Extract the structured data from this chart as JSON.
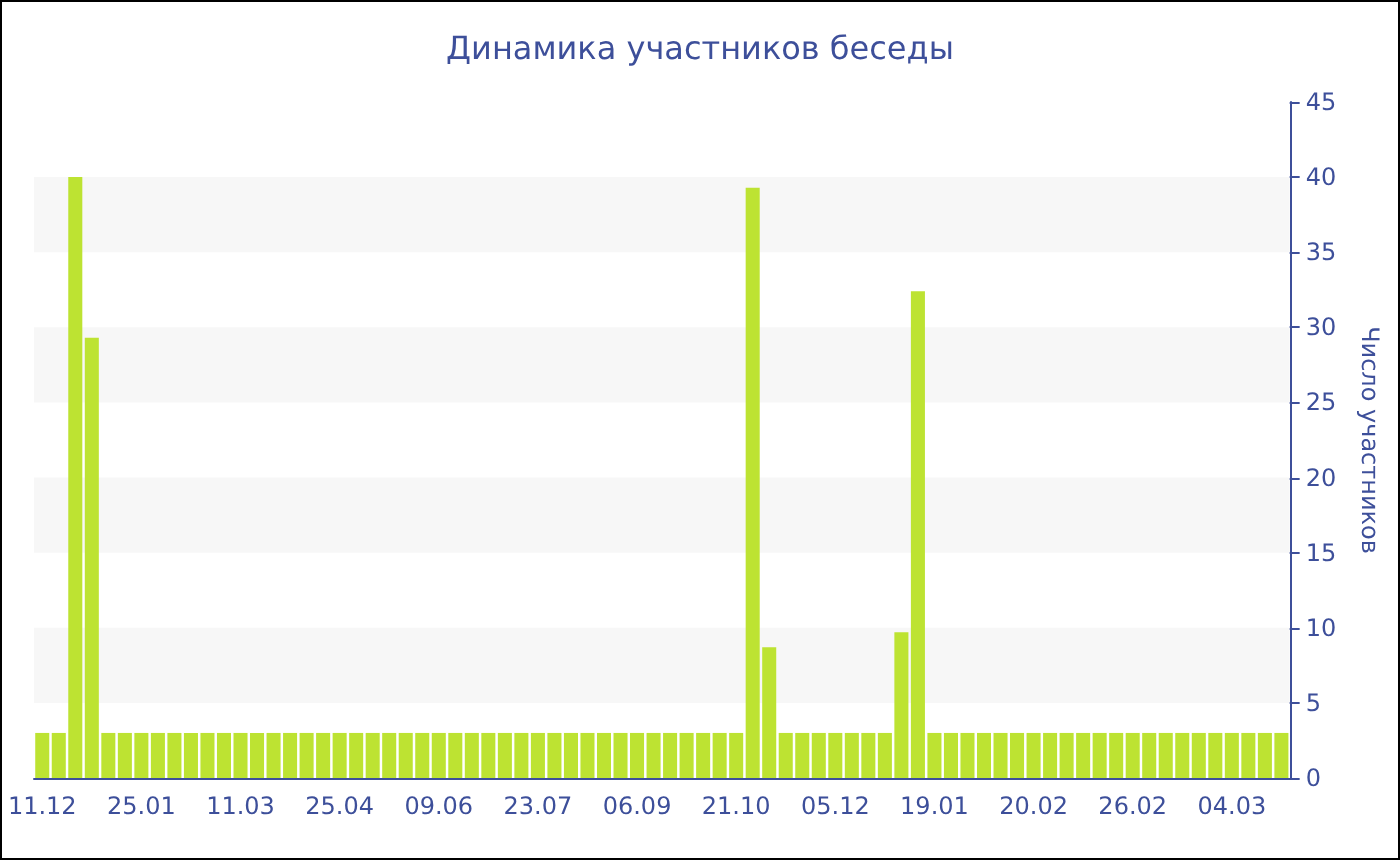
{
  "chart_data": {
    "type": "bar",
    "title": "Динамика участников беседы",
    "ylabel": "Число участников",
    "categories": [
      "11.12",
      null,
      null,
      null,
      null,
      null,
      "25.01",
      null,
      null,
      null,
      null,
      null,
      "11.03",
      null,
      null,
      null,
      null,
      null,
      "25.04",
      null,
      null,
      null,
      null,
      null,
      "09.06",
      null,
      null,
      null,
      null,
      null,
      "23.07",
      null,
      null,
      null,
      null,
      null,
      "06.09",
      null,
      null,
      null,
      null,
      null,
      "21.10",
      null,
      null,
      null,
      null,
      null,
      "05.12",
      null,
      null,
      null,
      null,
      null,
      "19.01",
      null,
      null,
      null,
      null,
      null,
      "20.02",
      null,
      null,
      null,
      null,
      null,
      "26.02",
      null,
      null,
      null,
      null,
      null,
      "04.03",
      null,
      null,
      null
    ],
    "values": [
      3,
      3,
      40,
      29.3,
      3,
      3,
      3,
      3,
      3,
      3,
      3,
      3,
      3,
      3,
      3,
      3,
      3,
      3,
      3,
      3,
      3,
      3,
      3,
      3,
      3,
      3,
      3,
      3,
      3,
      3,
      3,
      3,
      3,
      3,
      3,
      3,
      3,
      3,
      3,
      3,
      3,
      3,
      3,
      39.3,
      8.7,
      3,
      3,
      3,
      3,
      3,
      3,
      3,
      9.7,
      32.4,
      3,
      3,
      3,
      3,
      3,
      3,
      3,
      3,
      3,
      3,
      3,
      3,
      3,
      3,
      3,
      3,
      3,
      3,
      3,
      3,
      3,
      3
    ],
    "color": "#bde332",
    "ylim": [
      0,
      45
    ],
    "yticks": [
      0,
      5,
      10,
      15,
      20,
      25,
      30,
      35,
      40,
      45
    ],
    "bands": [
      {
        "axis": "y",
        "from": 5,
        "to": 10,
        "color": "#f7f7f7"
      },
      {
        "axis": "y",
        "from": 15,
        "to": 20,
        "color": "#f7f7f7"
      },
      {
        "axis": "y",
        "from": 25,
        "to": 30,
        "color": "#f7f7f7"
      },
      {
        "axis": "y",
        "from": 35,
        "to": 40,
        "color": "#f7f7f7"
      }
    ]
  }
}
